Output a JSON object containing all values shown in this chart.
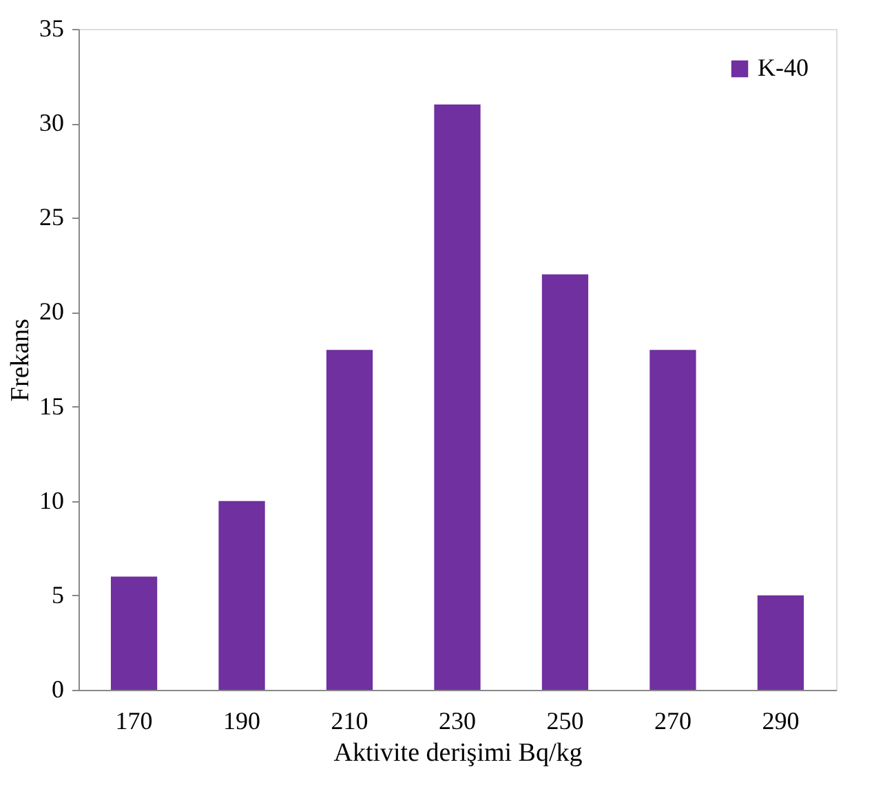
{
  "chart_data": {
    "type": "bar",
    "xlabel": "Aktivite derişimi Bq/kg",
    "ylabel": "Frekans",
    "categories": [
      "170",
      "190",
      "210",
      "230",
      "250",
      "270",
      "290"
    ],
    "series": [
      {
        "name": "K-40",
        "color": "#7030a0",
        "values": [
          6,
          10,
          18,
          31,
          22,
          18,
          5
        ]
      }
    ],
    "ylim": [
      0,
      35
    ],
    "yticks": [
      0,
      5,
      10,
      15,
      20,
      25,
      30,
      35
    ],
    "legend": "top right"
  }
}
